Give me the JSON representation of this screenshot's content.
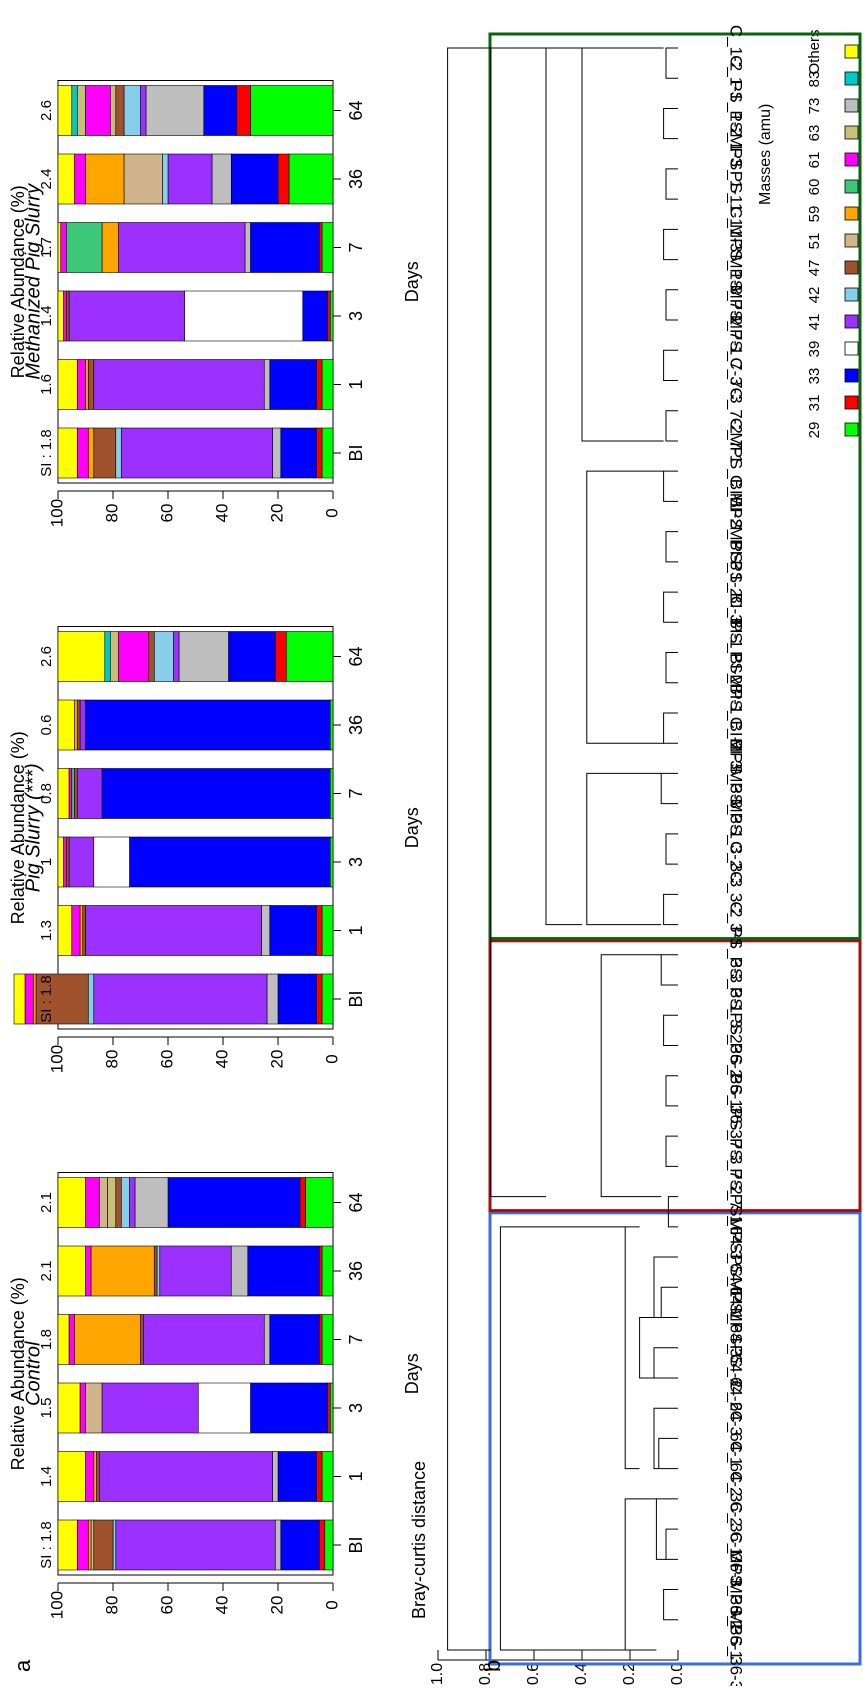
{
  "panel_labels": {
    "a": "a",
    "b": "b"
  },
  "chart_data": [
    {
      "type": "bar",
      "stacked": true,
      "orientation": "rotated",
      "ylabel": "Relative Abundance (%)",
      "xlabel": "Days",
      "ylim": [
        0,
        100
      ],
      "yticks": [
        0,
        20,
        40,
        60,
        80,
        100
      ],
      "categories": [
        "BI",
        "1",
        "3",
        "7",
        "36",
        "64"
      ],
      "si_prefix": "SI : ",
      "legend": {
        "title": "Masses (amu)",
        "entries": [
          {
            "label": "Others",
            "color": "#ffff00"
          },
          {
            "label": "83",
            "color": "#00c8c8"
          },
          {
            "label": "73",
            "color": "#bebebe"
          },
          {
            "label": "63",
            "color": "#c8c078"
          },
          {
            "label": "61",
            "color": "#ff00ff"
          },
          {
            "label": "60",
            "color": "#3cc878"
          },
          {
            "label": "59",
            "color": "#ffa500"
          },
          {
            "label": "51",
            "color": "#d2b48c"
          },
          {
            "label": "47",
            "color": "#a0522d"
          },
          {
            "label": "42",
            "color": "#87ceeb"
          },
          {
            "label": "41",
            "color": "#9b30ff"
          },
          {
            "label": "39",
            "color": "#ffffff"
          },
          {
            "label": "33",
            "color": "#0000ff"
          },
          {
            "label": "31",
            "color": "#ff0000"
          },
          {
            "label": "29",
            "color": "#00ff00"
          }
        ]
      },
      "treatments": [
        {
          "title": "Control",
          "si": [
            "1.8",
            "1.4",
            "1.5",
            "1.8",
            "2.1",
            "2.1"
          ],
          "bars": [
            [
              [
                "29",
                3
              ],
              [
                "31",
                2
              ],
              [
                "33",
                14
              ],
              [
                "73",
                2
              ],
              [
                "41",
                58
              ],
              [
                "42",
                1
              ],
              [
                "47",
                7
              ],
              [
                "51",
                1
              ],
              [
                "59",
                1
              ],
              [
                "61",
                4
              ],
              [
                "Others",
                7
              ]
            ],
            [
              [
                "29",
                4
              ],
              [
                "31",
                2
              ],
              [
                "33",
                14
              ],
              [
                "73",
                2
              ],
              [
                "41",
                63
              ],
              [
                "47",
                1
              ],
              [
                "59",
                1
              ],
              [
                "61",
                3
              ],
              [
                "Others",
                10
              ]
            ],
            [
              [
                "29",
                1
              ],
              [
                "31",
                1
              ],
              [
                "33",
                28
              ],
              [
                "39",
                19
              ],
              [
                "41",
                35
              ],
              [
                "51",
                6
              ],
              [
                "61",
                2
              ],
              [
                "Others",
                8
              ]
            ],
            [
              [
                "29",
                4
              ],
              [
                "31",
                1
              ],
              [
                "33",
                18
              ],
              [
                "73",
                2
              ],
              [
                "41",
                44
              ],
              [
                "47",
                1
              ],
              [
                "59",
                24
              ],
              [
                "61",
                2
              ],
              [
                "Others",
                4
              ]
            ],
            [
              [
                "29",
                4
              ],
              [
                "31",
                1
              ],
              [
                "33",
                26
              ],
              [
                "73",
                6
              ],
              [
                "41",
                26
              ],
              [
                "42",
                1
              ],
              [
                "47",
                1
              ],
              [
                "59",
                23
              ],
              [
                "61",
                2
              ],
              [
                "Others",
                10
              ]
            ],
            [
              [
                "29",
                10
              ],
              [
                "31",
                2
              ],
              [
                "33",
                48
              ],
              [
                "73",
                12
              ],
              [
                "41",
                2
              ],
              [
                "42",
                3
              ],
              [
                "47",
                2
              ],
              [
                "63",
                3
              ],
              [
                "51",
                3
              ],
              [
                "61",
                5
              ],
              [
                "Others",
                10
              ]
            ]
          ]
        },
        {
          "title": "Pig Slurry (***)",
          "si": [
            "1.8",
            "1.3",
            "1",
            "0.8",
            "0.6",
            "2.6"
          ],
          "bars": [
            [
              [
                "29",
                4
              ],
              [
                "31",
                2
              ],
              [
                "33",
                14
              ],
              [
                "73",
                4
              ],
              [
                "41",
                63
              ],
              [
                "42",
                2
              ],
              [
                "47",
                19
              ],
              [
                "59",
                1
              ],
              [
                "61",
                3
              ],
              [
                "Others",
                4
              ]
            ],
            [
              [
                "29",
                4
              ],
              [
                "31",
                2
              ],
              [
                "33",
                17
              ],
              [
                "73",
                3
              ],
              [
                "41",
                64
              ],
              [
                "47",
                1
              ],
              [
                "59",
                1
              ],
              [
                "61",
                3
              ],
              [
                "Others",
                5
              ]
            ],
            [
              [
                "29",
                1
              ],
              [
                "33",
                73
              ],
              [
                "39",
                13
              ],
              [
                "41",
                9
              ],
              [
                "47",
                1
              ],
              [
                "61",
                1
              ],
              [
                "Others",
                2
              ]
            ],
            [
              [
                "29",
                1
              ],
              [
                "33",
                83
              ],
              [
                "41",
                9
              ],
              [
                "47",
                1
              ],
              [
                "60",
                1
              ],
              [
                "61",
                1
              ],
              [
                "Others",
                4
              ]
            ],
            [
              [
                "29",
                1
              ],
              [
                "33",
                89
              ],
              [
                "41",
                2
              ],
              [
                "47",
                1
              ],
              [
                "59",
                1
              ],
              [
                "Others",
                6
              ]
            ],
            [
              [
                "29",
                17
              ],
              [
                "31",
                4
              ],
              [
                "33",
                17
              ],
              [
                "73",
                18
              ],
              [
                "41",
                2
              ],
              [
                "42",
                7
              ],
              [
                "47",
                2
              ],
              [
                "61",
                11
              ],
              [
                "63",
                3
              ],
              [
                "83",
                2
              ],
              [
                "Others",
                17
              ]
            ]
          ]
        },
        {
          "title": "Methanized Pig Slurry",
          "si": [
            "1.8",
            "1.6",
            "1.4",
            "1.7",
            "2.4",
            "2.6"
          ],
          "bars": [
            [
              [
                "29",
                4
              ],
              [
                "31",
                2
              ],
              [
                "33",
                13
              ],
              [
                "73",
                3
              ],
              [
                "41",
                55
              ],
              [
                "42",
                2
              ],
              [
                "47",
                8
              ],
              [
                "59",
                2
              ],
              [
                "61",
                4
              ],
              [
                "Others",
                7
              ]
            ],
            [
              [
                "29",
                4
              ],
              [
                "31",
                2
              ],
              [
                "33",
                17
              ],
              [
                "73",
                2
              ],
              [
                "41",
                62
              ],
              [
                "47",
                2
              ],
              [
                "59",
                1
              ],
              [
                "61",
                3
              ],
              [
                "Others",
                7
              ]
            ],
            [
              [
                "29",
                1
              ],
              [
                "31",
                1
              ],
              [
                "33",
                9
              ],
              [
                "39",
                43
              ],
              [
                "41",
                42
              ],
              [
                "47",
                1
              ],
              [
                "61",
                1
              ],
              [
                "Others",
                2
              ]
            ],
            [
              [
                "29",
                4
              ],
              [
                "31",
                1
              ],
              [
                "33",
                25
              ],
              [
                "73",
                2
              ],
              [
                "41",
                46
              ],
              [
                "59",
                6
              ],
              [
                "60",
                13
              ],
              [
                "61",
                2
              ],
              [
                "Others",
                1
              ]
            ],
            [
              [
                "29",
                16
              ],
              [
                "31",
                4
              ],
              [
                "33",
                17
              ],
              [
                "73",
                7
              ],
              [
                "41",
                16
              ],
              [
                "42",
                2
              ],
              [
                "51",
                14
              ],
              [
                "59",
                14
              ],
              [
                "61",
                4
              ],
              [
                "Others",
                6
              ]
            ],
            [
              [
                "29",
                30
              ],
              [
                "31",
                5
              ],
              [
                "33",
                12
              ],
              [
                "73",
                21
              ],
              [
                "41",
                2
              ],
              [
                "42",
                6
              ],
              [
                "47",
                3
              ],
              [
                "51",
                2
              ],
              [
                "61",
                9
              ],
              [
                "63",
                3
              ],
              [
                "83",
                2
              ],
              [
                "Others",
                5
              ]
            ]
          ]
        }
      ]
    },
    {
      "type": "dendrogram",
      "ylabel": "Bray-curtis distance",
      "ylim": [
        0,
        1
      ],
      "yticks": [
        "0.0",
        "0.2",
        "0.4",
        "0.6",
        "0.8",
        "1.0"
      ],
      "leaves": [
        "MPS_36-3",
        "MPS_36-1",
        "MPS_36-2",
        "C_36-3",
        "C_36-1",
        "C_36-2",
        "C_64-2",
        "C_64-1",
        "C_64-3",
        "PS_64-2",
        "MPS_64-2",
        "MPS_64-3",
        "PS_64-1",
        "MPS_64-1",
        "PS_64-3",
        "PS_7-1",
        "PS_7-2",
        "PS_7-3",
        "PS_36-3",
        "PS_36-1",
        "PS_36-2",
        "PS_3-2",
        "PS_3-1",
        "PS_3-3",
        "C_3-1",
        "C_3-2",
        "C_3-3",
        "MPS_3-2",
        "MPS_3-1",
        "MPS_3-3",
        "C_BI-3",
        "MPS_BI-2",
        "PS_BI-1",
        "PS_BI-2",
        "C_BI-1",
        "PS_BI-3",
        "MPS_1-2",
        "MPS_BI-3",
        "C_BI-2",
        "MPS_BI-1",
        "C_7-1",
        "C_7-2",
        "C_7-3",
        "MPS_7-3",
        "MPS_7-1",
        "MPS_7-2",
        "MPS_1-3",
        "C_1-3",
        "PS_1-1",
        "MPS_1-1",
        "PS_1-3",
        "PS_1-2",
        "C_1-1",
        "C_1-2"
      ],
      "clusters": [
        {
          "from": 0,
          "to": 14,
          "color": "#3a6ee0"
        },
        {
          "from": 15,
          "to": 23,
          "color": "#a01010"
        },
        {
          "from": 24,
          "to": 53,
          "color": "#0a6410"
        }
      ]
    }
  ]
}
